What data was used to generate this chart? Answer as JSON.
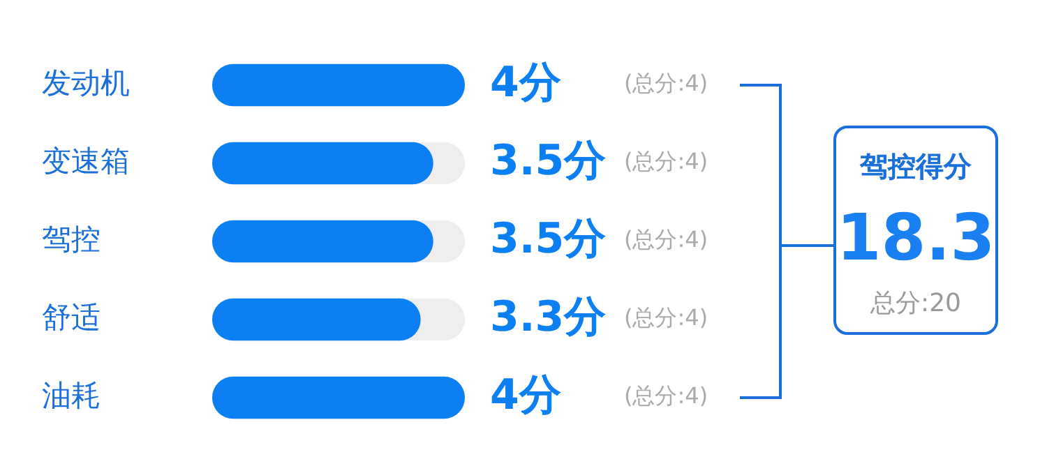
{
  "chart_data": {
    "type": "bar",
    "orientation": "horizontal",
    "categories": [
      "发动机",
      "变速箱",
      "驾控",
      "舒适",
      "油耗"
    ],
    "values": [
      4,
      3.5,
      3.5,
      3.3,
      4
    ],
    "color": "#0c7ff2",
    "value_labels": [
      "4分",
      "3.5分",
      "3.5分",
      "3.3分",
      "4分"
    ],
    "xlim": [
      0,
      4
    ],
    "grid": false,
    "legend": false,
    "annotations": [
      "(总分:4)",
      "(总分:4)",
      "(总分:4)",
      "(总分:4)",
      "(总分:4)",
      "驾控得分",
      "18.3",
      "总分:20"
    ]
  }
}
